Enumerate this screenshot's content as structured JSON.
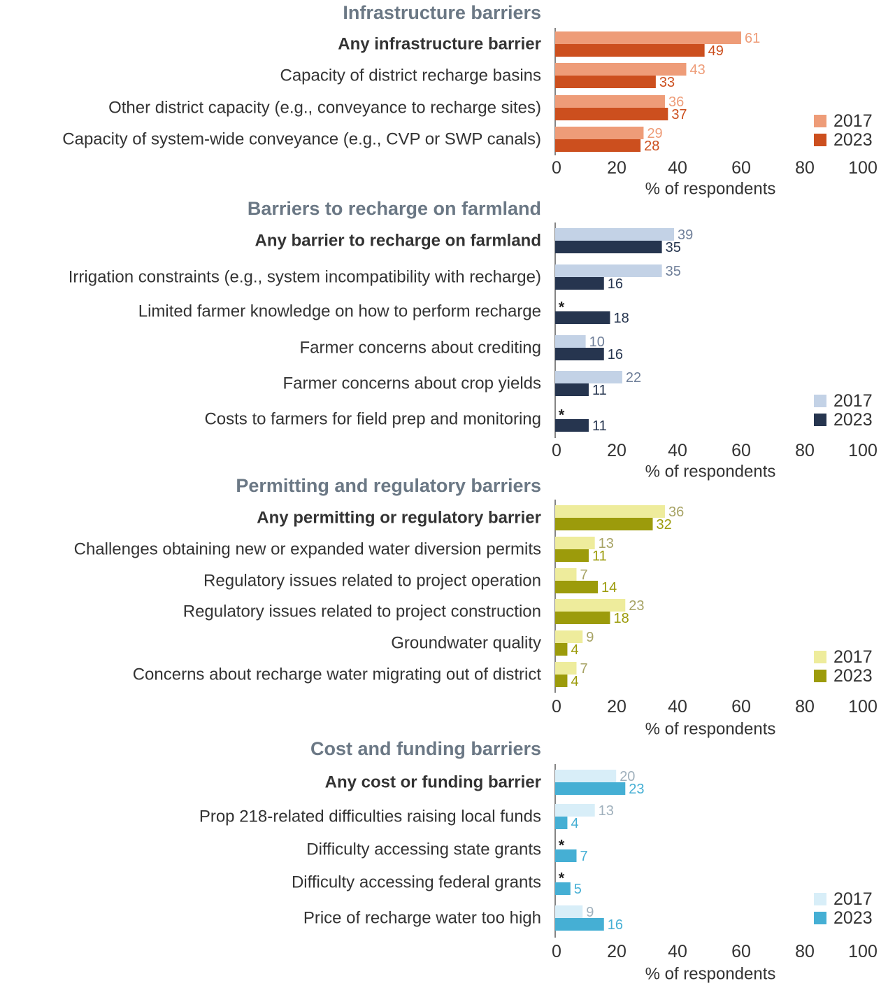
{
  "chart_data": [
    {
      "type": "bar",
      "orientation": "horizontal",
      "title": "Infrastructure barriers",
      "xlabel": "% of respondents",
      "xlim": [
        0,
        100
      ],
      "xticks": [
        "0",
        "20",
        "40",
        "60",
        "80",
        "100"
      ],
      "categories": [
        "Any infrastructure barrier",
        "Capacity of district recharge basins",
        "Other district capacity (e.g., conveyance to recharge sites)",
        "Capacity of system-wide conveyance (e.g., CVP or SWP canals)"
      ],
      "bold_first_category": true,
      "series": [
        {
          "name": "2017",
          "values": [
            61,
            43,
            36,
            29
          ],
          "color": "#ee9c78",
          "label_color": "#ee9c78"
        },
        {
          "name": "2023",
          "values": [
            49,
            33,
            37,
            28
          ],
          "color": "#cc4f1e",
          "label_color": "#cc4f1e"
        }
      ],
      "legend": "right"
    },
    {
      "type": "bar",
      "orientation": "horizontal",
      "title": "Barriers to recharge on farmland",
      "xlabel": "% of respondents",
      "xlim": [
        0,
        100
      ],
      "xticks": [
        "0",
        "20",
        "40",
        "60",
        "80",
        "100"
      ],
      "categories": [
        "Any barrier to recharge on farmland",
        "Irrigation constraints (e.g., system incompatibility with recharge)",
        "Limited farmer knowledge on how to perform recharge",
        "Farmer concerns about crediting",
        "Farmer concerns about crop yields",
        "Costs to farmers for field prep and monitoring"
      ],
      "bold_first_category": true,
      "series": [
        {
          "name": "2017",
          "values": [
            39,
            35,
            null,
            10,
            22,
            null
          ],
          "color": "#c3d2e6",
          "label_color": "#6f7f99"
        },
        {
          "name": "2023",
          "values": [
            35,
            16,
            18,
            16,
            11,
            11
          ],
          "color": "#26354f",
          "label_color": "#26354f"
        }
      ],
      "missing_marker": "*",
      "legend": "right"
    },
    {
      "type": "bar",
      "orientation": "horizontal",
      "title": "Permitting and regulatory barriers",
      "xlabel": "% of respondents",
      "xlim": [
        0,
        100
      ],
      "xticks": [
        "0",
        "20",
        "40",
        "60",
        "80",
        "100"
      ],
      "categories": [
        "Any permitting or regulatory barrier",
        "Challenges obtaining new or expanded water diversion permits",
        "Regulatory issues related to project operation",
        "Regulatory issues related to project construction",
        "Groundwater quality",
        "Concerns about recharge water migrating out of district"
      ],
      "bold_first_category": true,
      "series": [
        {
          "name": "2017",
          "values": [
            36,
            13,
            7,
            23,
            9,
            7
          ],
          "color": "#eeec9c",
          "label_color": "#a7a365"
        },
        {
          "name": "2023",
          "values": [
            32,
            11,
            14,
            18,
            4,
            4
          ],
          "color": "#9c9b0b",
          "label_color": "#9c9b0b"
        }
      ],
      "legend": "right"
    },
    {
      "type": "bar",
      "orientation": "horizontal",
      "title": "Cost and funding barriers",
      "xlabel": "% of respondents",
      "xlim": [
        0,
        100
      ],
      "xticks": [
        "0",
        "20",
        "40",
        "60",
        "80",
        "100"
      ],
      "categories": [
        "Any cost or funding barrier",
        "Prop 218-related difficulties raising local funds",
        "Difficulty accessing state grants",
        "Difficulty accessing federal grants",
        "Price of recharge water too high"
      ],
      "bold_first_category": true,
      "series": [
        {
          "name": "2017",
          "values": [
            20,
            13,
            null,
            null,
            9
          ],
          "color": "#d8eef8",
          "label_color": "#9fb0bc"
        },
        {
          "name": "2023",
          "values": [
            23,
            4,
            7,
            5,
            16
          ],
          "color": "#45afd4",
          "label_color": "#45afd4"
        }
      ],
      "missing_marker": "*",
      "legend": "right"
    }
  ]
}
